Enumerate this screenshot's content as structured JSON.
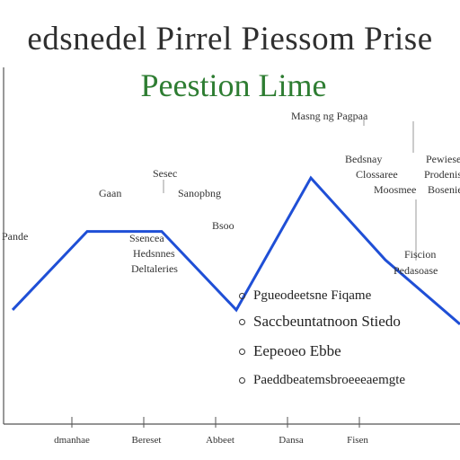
{
  "chart_data": {
    "type": "line",
    "title": "edsnedel Pirrel Piessom Prise",
    "subtitle": "Peestion Lime",
    "x": [
      0,
      1,
      2,
      3,
      4,
      5,
      6
    ],
    "series": [
      {
        "values": [
          3.2,
          5.4,
          5.4,
          3.2,
          6.9,
          4.6,
          2.8
        ]
      }
    ],
    "ylim": [
      0,
      10
    ],
    "xlim": [
      0,
      6
    ],
    "x_tick_labels": [
      "dmanhae",
      "Bereset",
      "Abbeet",
      "Dansa",
      "Fisen"
    ],
    "annotations": [
      "Pande",
      "Sesec",
      "Sanopbng",
      "Gaan",
      "Bsoo",
      "Ssencea",
      "Hedsnnes",
      "Deltaleries",
      "Masng ng Pagpaa",
      "Bedsnay",
      "Clossaree",
      "Moosmee",
      "Pewieses",
      "Prodeniss",
      "Bosenies",
      "Fiscion",
      "Pedasoase"
    ],
    "grid": false,
    "legend": "none",
    "line_color": "#1f4fd6"
  },
  "bullets": [
    "Pgueodeetsne Fiqame",
    "Saccbeuntatnoon Stiedo",
    "Eepeoeo Ebbe",
    "Paeddbeatemsbroeeeaemgte"
  ]
}
